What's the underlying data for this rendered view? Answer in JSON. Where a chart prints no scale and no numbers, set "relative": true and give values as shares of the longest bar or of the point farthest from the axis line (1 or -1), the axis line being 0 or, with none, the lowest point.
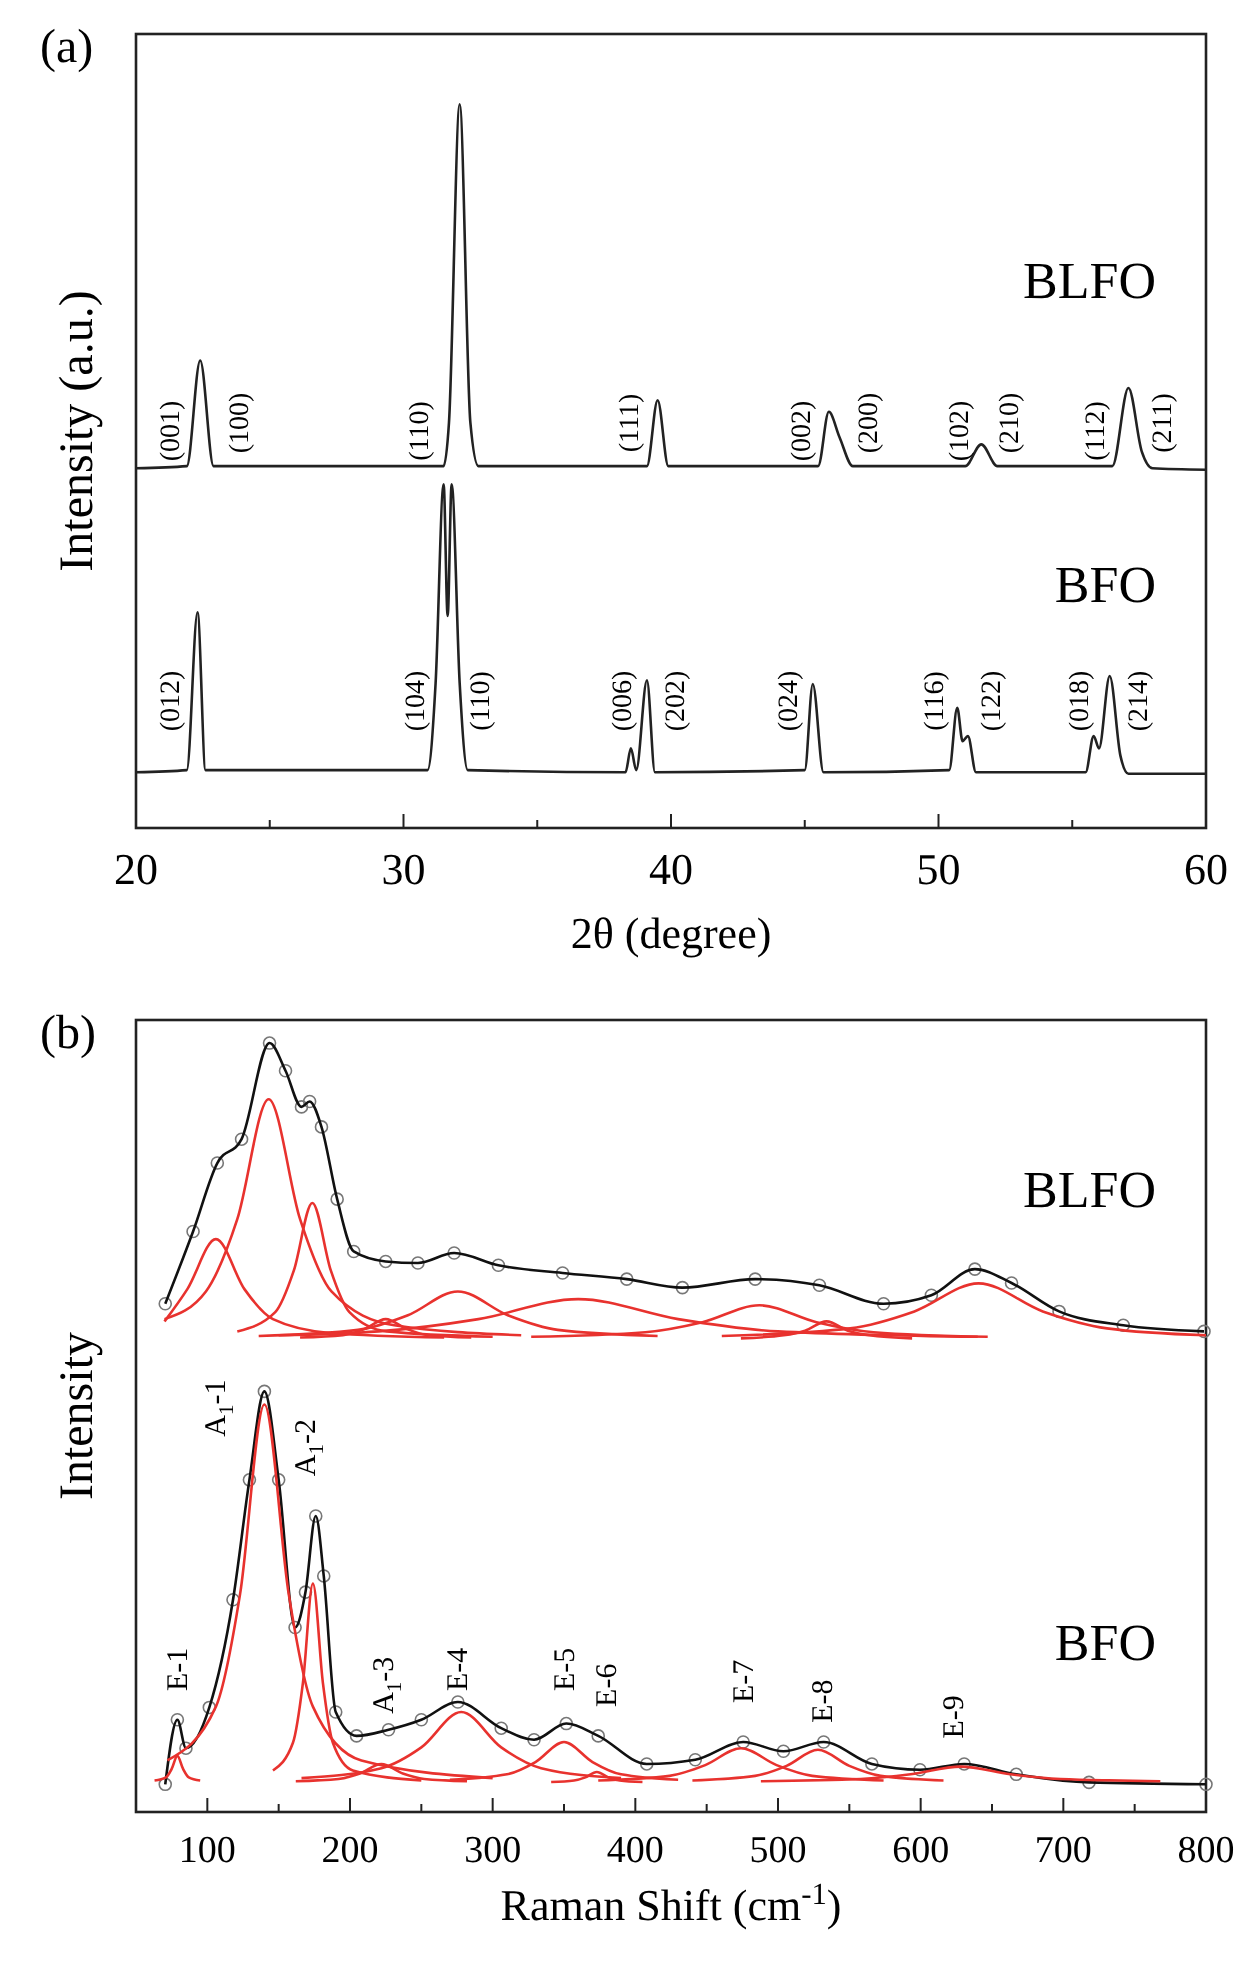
{
  "chart_data": [
    {
      "type": "line",
      "title": "(a)",
      "xlabel": "2θ (degree)",
      "ylabel": "Intensity (a.u.)",
      "relative": true,
      "tick_labels": "x",
      "xlim": [
        20,
        60
      ],
      "xticks": [
        20,
        {
          "value": 25,
          "label": null
        },
        30,
        {
          "value": 35,
          "label": null
        },
        40,
        {
          "value": 45,
          "label": null
        },
        50,
        {
          "value": 55,
          "label": null
        },
        60
      ],
      "series": [
        {
          "name": "BLFO",
          "color": "#222222",
          "x": [
            20,
            21.9,
            22.4,
            22.9,
            31.5,
            31.7,
            32.1,
            32.5,
            32.8,
            39.1,
            39.5,
            39.9,
            45.5,
            45.9,
            46.3,
            46.8,
            51,
            51.6,
            52.2,
            56.5,
            57.1,
            57.6,
            58,
            60
          ],
          "values": [
            0.497,
            0.5,
            0.646,
            0.5,
            0.5,
            0.56,
            1,
            0.56,
            0.5,
            0.5,
            0.591,
            0.5,
            0.5,
            0.575,
            0.54,
            0.5,
            0.5,
            0.53,
            0.5,
            0.5,
            0.608,
            0.52,
            0.497,
            0.495
          ]
        },
        {
          "name": "BFO",
          "color": "#222222",
          "x": [
            20,
            21.9,
            22.3,
            22.6,
            30.9,
            31.2,
            31.5,
            31.65,
            31.8,
            32.1,
            32.4,
            38.3,
            38.5,
            38.7,
            39.1,
            39.4,
            45,
            45.3,
            45.7,
            50.4,
            50.7,
            50.9,
            51.1,
            51.4,
            55.5,
            55.8,
            56,
            56.4,
            56.8,
            57.1,
            60
          ],
          "values": [
            0.077,
            0.08,
            0.298,
            0.08,
            0.08,
            0.2,
            0.475,
            0.293,
            0.475,
            0.2,
            0.08,
            0.077,
            0.11,
            0.08,
            0.204,
            0.077,
            0.08,
            0.199,
            0.077,
            0.08,
            0.166,
            0.12,
            0.127,
            0.077,
            0.077,
            0.127,
            0.11,
            0.21,
            0.1,
            0.075,
            0.075
          ]
        }
      ],
      "annotations": [
        "(001)",
        "(100)",
        "(110)",
        "(111)",
        "(002)",
        "(200)",
        "(102)",
        "(210)",
        "(112)",
        "(211)",
        "(012)",
        "(104)",
        "(110)",
        "(006)",
        "(202)",
        "(024)",
        "(116)",
        "(122)",
        "(018)",
        "(214)"
      ]
    },
    {
      "type": "line",
      "title": "(b)",
      "xlabel": "Raman Shift (cm$^{-1}$)",
      "ylabel": "Intensity",
      "relative": true,
      "tick_labels": "x",
      "xlim": [
        50,
        800
      ],
      "xticks": [
        100,
        {
          "value": 150,
          "label": null
        },
        200,
        {
          "value": 250,
          "label": null
        },
        300,
        {
          "value": 350,
          "label": null
        },
        400,
        {
          "value": 450,
          "label": null
        },
        500,
        {
          "value": 550,
          "label": null
        },
        600,
        {
          "value": 650,
          "label": null
        },
        700,
        {
          "value": 750,
          "label": null
        },
        800
      ],
      "series": [
        {
          "type": "scatter",
          "marker": "circle",
          "color": "#777777",
          "x": [
            70.5,
            90,
            107,
            124,
            143.6,
            154.8,
            166,
            171.7,
            180,
            191,
            202.6,
            225,
            247.6,
            273,
            304,
            349,
            394,
            433,
            484,
            529,
            574,
            607.5,
            638,
            663.7,
            697,
            742,
            798.6
          ],
          "values": [
            0.661,
            0.755,
            0.844,
            0.875,
            1,
            0.964,
            0.917,
            0.924,
            0.891,
            0.797,
            0.729,
            0.716,
            0.714,
            0.727,
            0.711,
            0.701,
            0.693,
            0.682,
            0.693,
            0.685,
            0.661,
            0.672,
            0.706,
            0.688,
            0.651,
            0.633,
            0.625
          ]
        },
        {
          "name": "BLFO",
          "color": "#111111",
          "x": [
            70.5,
            90,
            107,
            124,
            143.6,
            154.8,
            166,
            171.7,
            180,
            191,
            202.6,
            225,
            247.6,
            273,
            304,
            349,
            394,
            433,
            484,
            529,
            574,
            607.5,
            638,
            663.7,
            697,
            742,
            798.6
          ],
          "values": [
            0.661,
            0.755,
            0.844,
            0.875,
            1,
            0.964,
            0.917,
            0.924,
            0.891,
            0.797,
            0.729,
            0.716,
            0.714,
            0.727,
            0.711,
            0.701,
            0.693,
            0.682,
            0.693,
            0.685,
            0.661,
            0.672,
            0.706,
            0.688,
            0.651,
            0.633,
            0.625
          ]
        },
        {
          "color": "#e8322e",
          "x": [
            70,
            86,
            106,
            126,
            146,
            186,
            266
          ],
          "values": [
            0.638,
            0.68,
            0.745,
            0.68,
            0.641,
            0.623,
            0.617
          ]
        },
        {
          "color": "#e8322e",
          "x": [
            70,
            99,
            121,
            143,
            165,
            187,
            231,
            320
          ],
          "values": [
            0.641,
            0.677,
            0.771,
            0.927,
            0.771,
            0.677,
            0.633,
            0.62
          ]
        },
        {
          "color": "#e8322e",
          "x": [
            121,
            147.6,
            160.6,
            173.6,
            186.6,
            199.6,
            225.6,
            300
          ],
          "values": [
            0.625,
            0.65,
            0.704,
            0.792,
            0.704,
            0.65,
            0.625,
            0.618
          ]
        },
        {
          "color": "#e8322e",
          "x": [
            165,
            195,
            210,
            225,
            240,
            255,
            285
          ],
          "values": [
            0.617,
            0.62,
            0.628,
            0.641,
            0.628,
            0.62,
            0.617
          ]
        },
        {
          "color": "#e8322e",
          "x": [
            136,
            205.6,
            240.6,
            275.6,
            310.6,
            345.6,
            415.6
          ],
          "values": [
            0.619,
            0.627,
            0.646,
            0.677,
            0.646,
            0.627,
            0.619
          ]
        },
        {
          "color": "#e8322e",
          "x": [
            150,
            220,
            290,
            360,
            430,
            500,
            640
          ],
          "values": [
            0.62,
            0.625,
            0.641,
            0.667,
            0.641,
            0.625,
            0.618
          ]
        },
        {
          "color": "#e8322e",
          "x": [
            327,
            407,
            447,
            487,
            527,
            567,
            647
          ],
          "values": [
            0.618,
            0.624,
            0.637,
            0.659,
            0.637,
            0.624,
            0.618
          ]
        },
        {
          "color": "#e8322e",
          "x": [
            474,
            504,
            519,
            534,
            549,
            564,
            594
          ],
          "values": [
            0.616,
            0.62,
            0.626,
            0.638,
            0.626,
            0.62,
            0.616
          ]
        },
        {
          "color": "#e8322e",
          "x": [
            460.6,
            550.6,
            595.6,
            640.6,
            685.6,
            730.6,
            800
          ],
          "values": [
            0.619,
            0.629,
            0.651,
            0.6875,
            0.651,
            0.629,
            0.62
          ]
        },
        {
          "type": "scatter",
          "marker": "circle",
          "color": "#777777",
          "x": [
            70.5,
            79,
            85,
            101.4,
            118,
            129.5,
            140,
            150,
            161.5,
            168.8,
            176,
            181.6,
            190,
            204.6,
            227,
            250,
            275.6,
            306,
            329,
            351.6,
            374,
            408,
            442,
            475.6,
            503.8,
            532,
            565.8,
            599.5,
            630.5,
            667,
            718,
            800
          ],
          "values": [
            0.036,
            0.12,
            0.083,
            0.136,
            0.276,
            0.432,
            0.547,
            0.432,
            0.24,
            0.286,
            0.385,
            0.307,
            0.13,
            0.099,
            0.107,
            0.12,
            0.143,
            0.109,
            0.094,
            0.115,
            0.099,
            0.0625,
            0.068,
            0.091,
            0.079,
            0.091,
            0.0625,
            0.055,
            0.0625,
            0.049,
            0.0385,
            0.036
          ]
        },
        {
          "name": "BFO",
          "color": "#111111",
          "x": [
            70.5,
            79,
            85,
            101.4,
            118,
            129.5,
            140,
            150,
            161.5,
            168.8,
            176,
            181.6,
            190,
            204.6,
            227,
            250,
            275.6,
            306,
            329,
            351.6,
            374,
            408,
            442,
            475.6,
            503.8,
            532,
            565.8,
            599.5,
            630.5,
            667,
            718,
            800
          ],
          "values": [
            0.036,
            0.12,
            0.083,
            0.136,
            0.276,
            0.432,
            0.547,
            0.432,
            0.24,
            0.286,
            0.385,
            0.307,
            0.13,
            0.099,
            0.107,
            0.12,
            0.143,
            0.109,
            0.094,
            0.115,
            0.099,
            0.0625,
            0.068,
            0.091,
            0.079,
            0.091,
            0.0625,
            0.055,
            0.0625,
            0.049,
            0.0385,
            0.036
          ]
        },
        {
          "color": "#e8322e",
          "x": [
            63,
            71,
            75,
            79,
            83,
            87,
            95
          ],
          "values": [
            0.041,
            0.045,
            0.056,
            0.073,
            0.056,
            0.045,
            0.041
          ]
        },
        {
          "color": "#e8322e",
          "x": [
            72,
            106,
            123,
            140,
            157,
            174,
            208,
            300
          ],
          "values": [
            0.067,
            0.137,
            0.284,
            0.53,
            0.284,
            0.137,
            0.067,
            0.044
          ]
        },
        {
          "color": "#e8322e",
          "x": [
            146,
            160,
            167,
            174,
            181,
            188,
            202,
            250
          ],
          "values": [
            0.054,
            0.09,
            0.168,
            0.297,
            0.168,
            0.09,
            0.054,
            0.041
          ]
        },
        {
          "color": "#e8322e",
          "x": [
            162,
            192,
            207,
            222,
            237,
            252,
            282
          ],
          "values": [
            0.04,
            0.043,
            0.05,
            0.0625,
            0.05,
            0.043,
            0.04
          ]
        },
        {
          "color": "#e8322e",
          "x": [
            166,
            222,
            250,
            278,
            306,
            334,
            390
          ],
          "values": [
            0.044,
            0.057,
            0.084,
            0.13,
            0.084,
            0.057,
            0.044
          ]
        },
        {
          "color": "#e8322e",
          "x": [
            270,
            310,
            330,
            350,
            370,
            390,
            430
          ],
          "values": [
            0.042,
            0.049,
            0.065,
            0.091,
            0.065,
            0.049,
            0.042
          ]
        },
        {
          "color": "#e8322e",
          "x": [
            341,
            357,
            365,
            373,
            381,
            389,
            405
          ],
          "values": [
            0.039,
            0.041,
            0.045,
            0.052,
            0.045,
            0.041,
            0.039
          ]
        },
        {
          "color": "#e8322e",
          "x": [
            374,
            424,
            449,
            474,
            499,
            524,
            574
          ],
          "values": [
            0.041,
            0.047,
            0.061,
            0.083,
            0.061,
            0.047,
            0.041
          ]
        },
        {
          "color": "#e8322e",
          "x": [
            440,
            484,
            506,
            528,
            550,
            572,
            616
          ],
          "values": [
            0.041,
            0.047,
            0.06,
            0.081,
            0.06,
            0.047,
            0.041
          ]
        },
        {
          "color": "#e8322e",
          "x": [
            488,
            558,
            593,
            628,
            663,
            698,
            768
          ],
          "values": [
            0.04,
            0.043,
            0.049,
            0.059,
            0.049,
            0.043,
            0.04
          ]
        }
      ],
      "annotations": [
        "E-1",
        "A$_{1}$-1",
        "A$_{1}$-2",
        "A$_{1}$-3",
        "E-4",
        "E-5",
        "E-6",
        "E-7",
        "E-8",
        "E-9"
      ]
    }
  ]
}
